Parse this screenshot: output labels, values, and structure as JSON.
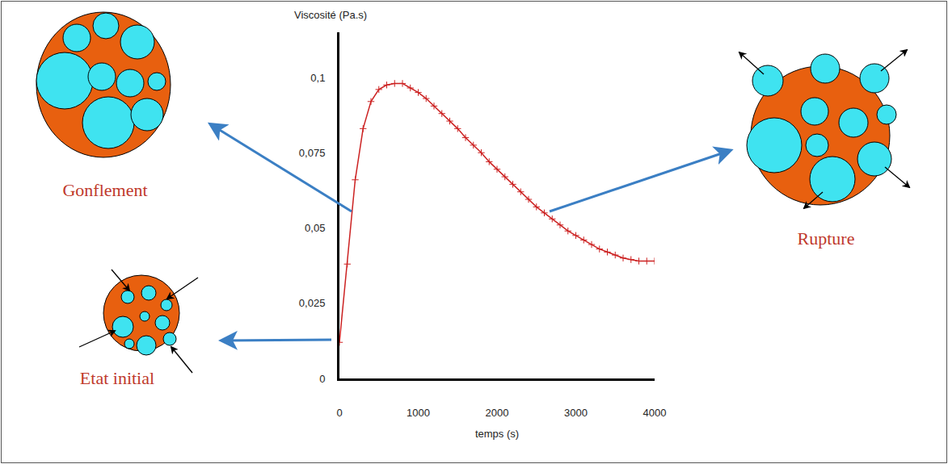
{
  "chart_data": {
    "type": "line",
    "x_label": "temps (s)",
    "y_label": "Viscosité (Pa.s)",
    "color": "#cc2222",
    "marker": "cross",
    "grid": false,
    "x": [
      0,
      100,
      200,
      300,
      400,
      500,
      600,
      700,
      800,
      900,
      1000,
      1100,
      1200,
      1300,
      1400,
      1500,
      1600,
      1700,
      1800,
      1900,
      2000,
      2100,
      2200,
      2300,
      2400,
      2500,
      2600,
      2700,
      2800,
      2900,
      3000,
      3100,
      3200,
      3300,
      3400,
      3500,
      3600,
      3700,
      3800,
      3900,
      4000
    ],
    "values": [
      0.012,
      0.038,
      0.066,
      0.083,
      0.092,
      0.096,
      0.0975,
      0.098,
      0.098,
      0.0965,
      0.095,
      0.093,
      0.0905,
      0.088,
      0.0855,
      0.083,
      0.08,
      0.0775,
      0.075,
      0.072,
      0.0695,
      0.067,
      0.0645,
      0.062,
      0.0595,
      0.057,
      0.055,
      0.053,
      0.051,
      0.049,
      0.0475,
      0.046,
      0.0445,
      0.043,
      0.042,
      0.041,
      0.04,
      0.0395,
      0.039,
      0.039,
      0.039
    ],
    "xlim": [
      0,
      4000
    ],
    "ylim": [
      0,
      0.115
    ],
    "xticks": [
      0,
      1000,
      2000,
      3000,
      4000
    ],
    "yticks": [
      0,
      {
        "value": 0.025,
        "label": "0,025"
      },
      {
        "value": 0.05,
        "label": "0,05"
      },
      {
        "value": 0.075,
        "label": "0,075"
      },
      {
        "value": 0.1,
        "label": "0,1"
      }
    ],
    "annotations": [
      "Etat initial",
      "Gonflement",
      "Rupture"
    ]
  }
}
